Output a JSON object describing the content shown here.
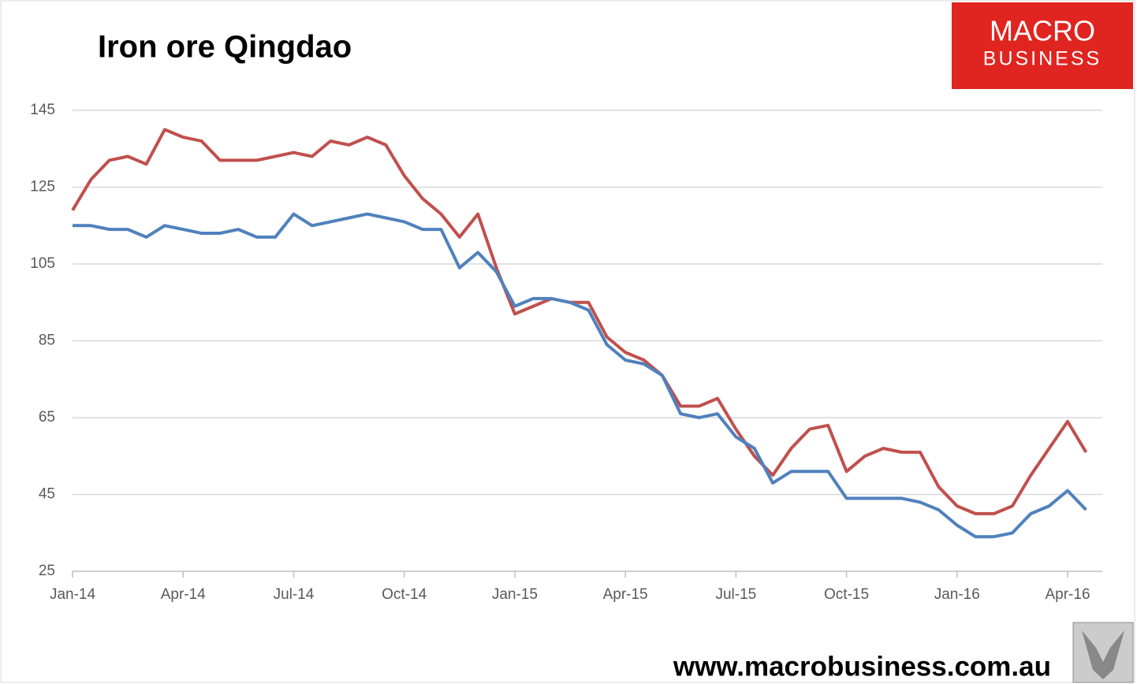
{
  "chart_data": {
    "type": "line",
    "title": "Iron ore Qingdao",
    "logo": {
      "top": "MACRO",
      "bottom": "BUSINESS"
    },
    "footer": "www.macrobusiness.com.au",
    "categories": [
      "Jan-14",
      null,
      null,
      null,
      null,
      null,
      "Apr-14",
      null,
      null,
      null,
      null,
      null,
      "Jul-14",
      null,
      null,
      null,
      null,
      null,
      "Oct-14",
      null,
      null,
      null,
      null,
      null,
      "Jan-15",
      null,
      null,
      null,
      null,
      null,
      "Apr-15",
      null,
      null,
      null,
      null,
      null,
      "Jul-15",
      null,
      null,
      null,
      null,
      null,
      "Oct-15",
      null,
      null,
      null,
      null,
      null,
      "Jan-16",
      null,
      null,
      null,
      null,
      null,
      "Apr-16",
      null
    ],
    "series": [
      {
        "color": "#c0504d",
        "values": [
          119,
          127,
          132,
          133,
          131,
          140,
          138,
          137,
          132,
          132,
          132,
          133,
          134,
          133,
          137,
          136,
          138,
          136,
          128,
          122,
          118,
          112,
          118,
          104,
          92,
          94,
          96,
          95,
          95,
          86,
          82,
          80,
          76,
          68,
          68,
          70,
          62,
          55,
          50,
          57,
          62,
          63,
          51,
          55,
          57,
          56,
          56,
          47,
          42,
          40,
          40,
          42,
          50,
          57,
          64,
          56
        ]
      },
      {
        "color": "#4f81bd",
        "values": [
          115,
          115,
          114,
          114,
          112,
          115,
          114,
          113,
          113,
          114,
          112,
          112,
          118,
          115,
          116,
          117,
          118,
          117,
          116,
          114,
          114,
          104,
          108,
          103,
          94,
          96,
          96,
          95,
          93,
          84,
          80,
          79,
          76,
          66,
          65,
          66,
          60,
          57,
          48,
          51,
          51,
          51,
          44,
          44,
          44,
          44,
          43,
          41,
          37,
          34,
          34,
          35,
          40,
          42,
          46,
          41
        ]
      }
    ],
    "ylim": [
      25,
      145
    ],
    "yticks": [
      25,
      45,
      65,
      85,
      105,
      125,
      145
    ],
    "grid": true
  }
}
